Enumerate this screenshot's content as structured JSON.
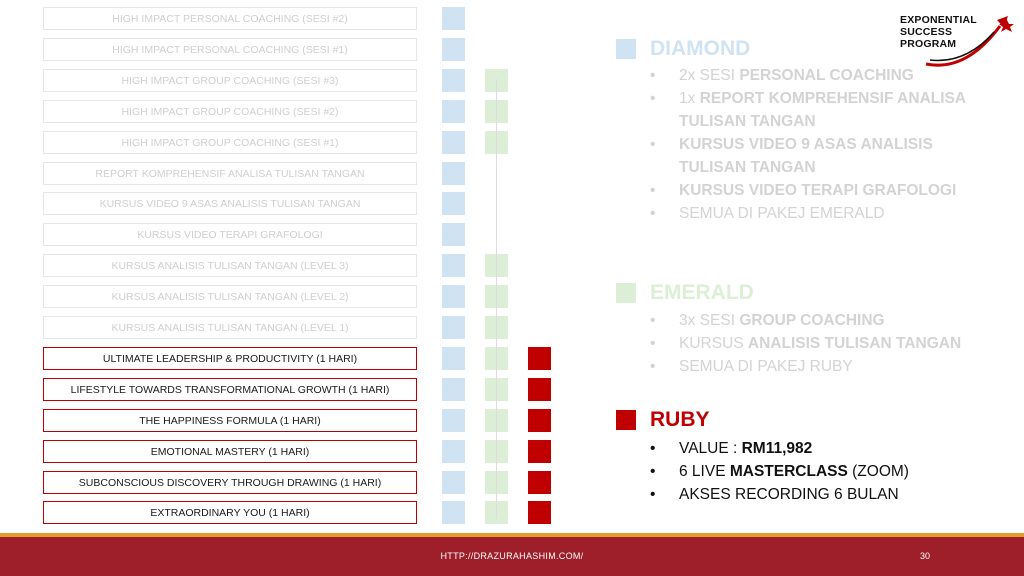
{
  "rows": [
    {
      "label": "HIGH IMPACT PERSONAL COACHING  (SESI #2)",
      "active": false,
      "blue": true,
      "green": false,
      "red": false
    },
    {
      "label": "HIGH IMPACT PERSONAL COACHING  (SESI #1)",
      "active": false,
      "blue": true,
      "green": false,
      "red": false
    },
    {
      "label": "HIGH IMPACT GROUP COACHING (SESI #3)",
      "active": false,
      "blue": true,
      "green": true,
      "red": false
    },
    {
      "label": "HIGH IMPACT GROUP COACHING (SESI #2)",
      "active": false,
      "blue": true,
      "green": true,
      "red": false
    },
    {
      "label": "HIGH IMPACT GROUP COACHING (SESI #1)",
      "active": false,
      "blue": true,
      "green": true,
      "red": false
    },
    {
      "label": "REPORT KOMPREHENSIF ANALISA TULISAN TANGAN",
      "active": false,
      "blue": true,
      "green": false,
      "red": false
    },
    {
      "label": "KURSUS VIDEO 9 ASAS ANALISIS TULISAN TANGAN",
      "active": false,
      "blue": true,
      "green": false,
      "red": false
    },
    {
      "label": "KURSUS VIDEO TERAPI GRAFOLOGI",
      "active": false,
      "blue": true,
      "green": false,
      "red": false
    },
    {
      "label": "KURSUS ANALISIS TULISAN TANGAN (LEVEL 3)",
      "active": false,
      "blue": true,
      "green": true,
      "red": false
    },
    {
      "label": "KURSUS ANALISIS TULISAN TANGAN (LEVEL 2)",
      "active": false,
      "blue": true,
      "green": true,
      "red": false
    },
    {
      "label": "KURSUS ANALISIS TULISAN TANGAN (LEVEL 1)",
      "active": false,
      "blue": true,
      "green": true,
      "red": false
    },
    {
      "label": "ULTIMATE LEADERSHIP & PRODUCTIVITY  (1 HARI)",
      "active": true,
      "blue": true,
      "green": true,
      "red": true
    },
    {
      "label": "LIFESTYLE TOWARDS TRANSFORMATIONAL GROWTH (1 HARI)",
      "active": true,
      "blue": true,
      "green": true,
      "red": true
    },
    {
      "label": "THE HAPPINESS FORMULA (1 HARI)",
      "active": true,
      "blue": true,
      "green": true,
      "red": true
    },
    {
      "label": "EMOTIONAL MASTERY (1 HARI)",
      "active": true,
      "blue": true,
      "green": true,
      "red": true
    },
    {
      "label": "SUBCONSCIOUS DISCOVERY THROUGH DRAWING (1 HARI)",
      "active": true,
      "blue": true,
      "green": true,
      "red": true
    },
    {
      "label": "EXTRAORDINARY YOU (1 HARI)",
      "active": true,
      "blue": true,
      "green": true,
      "red": true
    }
  ],
  "packages": {
    "diamond": {
      "title": "DIAMOND",
      "items": [
        {
          "normal": "2x SESI ",
          "bold": "PERSONAL COACHING",
          "after": ""
        },
        {
          "normal": "1x ",
          "bold": "REPORT KOMPREHENSIF ANALISA TULISAN TANGAN",
          "after": ""
        },
        {
          "normal": "",
          "bold": "KURSUS VIDEO 9 ASAS ANALISIS TULISAN TANGAN",
          "after": ""
        },
        {
          "normal": "",
          "bold": "KURSUS VIDEO TERAPI GRAFOLOGI",
          "after": ""
        },
        {
          "normal": "SEMUA DI PAKEJ EMERALD",
          "bold": "",
          "after": ""
        }
      ]
    },
    "emerald": {
      "title": "EMERALD",
      "items": [
        {
          "normal": "3x SESI ",
          "bold": "GROUP COACHING",
          "after": ""
        },
        {
          "normal": "KURSUS ",
          "bold": "ANALISIS TULISAN TANGAN",
          "after": ""
        },
        {
          "normal": "SEMUA DI PAKEJ RUBY",
          "bold": "",
          "after": ""
        }
      ]
    },
    "ruby": {
      "title": "RUBY",
      "items": [
        {
          "normal": "VALUE : ",
          "bold": "RM11,982",
          "after": ""
        },
        {
          "normal": "6 LIVE ",
          "bold": "MASTERCLASS",
          "after": " (ZOOM)"
        },
        {
          "normal": "AKSES RECORDING 6 BULAN",
          "bold": "",
          "after": ""
        }
      ]
    }
  },
  "logo": {
    "line1": "EXPONENTIAL",
    "line2": "SUCCESS",
    "line3": "PROGRAM"
  },
  "footer": {
    "url": "HTTP://DRAZURAHASHIM.COM/",
    "page": "30"
  },
  "colors": {
    "blue": "#cfe3f3",
    "green": "#dcefd6",
    "red": "#c00000",
    "footer": "#9e1f2a",
    "stripe": "#e59a2c"
  }
}
